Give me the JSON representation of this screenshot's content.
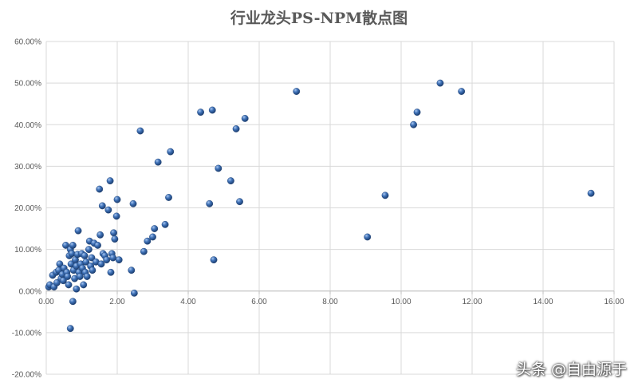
{
  "chart_data": {
    "type": "scatter",
    "title": "行业龙头PS-NPM散点图",
    "xlabel": "",
    "ylabel": "",
    "xlim": [
      0,
      16
    ],
    "ylim": [
      -0.2,
      0.6
    ],
    "x_ticks": [
      "0.00",
      "2.00",
      "4.00",
      "6.00",
      "8.00",
      "10.00",
      "12.00",
      "14.00",
      "16.00"
    ],
    "y_ticks": [
      "-20.00%",
      "-10.00%",
      "0.00%",
      "10.00%",
      "20.00%",
      "30.00%",
      "40.00%",
      "50.00%",
      "60.00%"
    ],
    "grid": true,
    "legend": "none",
    "marker_color": "#2e5e9e",
    "points": [
      [
        0.07,
        0.01
      ],
      [
        0.1,
        0.015
      ],
      [
        0.18,
        0.038
      ],
      [
        0.22,
        0.01
      ],
      [
        0.28,
        0.045
      ],
      [
        0.3,
        0.02
      ],
      [
        0.35,
        0.05
      ],
      [
        0.38,
        0.065
      ],
      [
        0.42,
        0.03
      ],
      [
        0.45,
        0.04
      ],
      [
        0.48,
        0.025
      ],
      [
        0.5,
        0.055
      ],
      [
        0.55,
        0.11
      ],
      [
        0.58,
        0.045
      ],
      [
        0.6,
        0.035
      ],
      [
        0.63,
        0.015
      ],
      [
        0.65,
        0.085
      ],
      [
        0.68,
        0.1
      ],
      [
        0.7,
        0.065
      ],
      [
        0.72,
        0.09
      ],
      [
        0.75,
        0.11
      ],
      [
        0.77,
        0.05
      ],
      [
        0.8,
        0.03
      ],
      [
        0.82,
        0.075
      ],
      [
        0.85,
        0.06
      ],
      [
        0.88,
        0.088
      ],
      [
        0.9,
        0.145
      ],
      [
        0.92,
        0.045
      ],
      [
        0.95,
        0.035
      ],
      [
        0.97,
        0.065
      ],
      [
        1.0,
        0.09
      ],
      [
        1.02,
        0.055
      ],
      [
        1.05,
        0.015
      ],
      [
        1.08,
        0.085
      ],
      [
        1.1,
        0.045
      ],
      [
        1.12,
        0.07
      ],
      [
        1.15,
        0.035
      ],
      [
        1.2,
        0.1
      ],
      [
        1.22,
        0.12
      ],
      [
        1.25,
        0.06
      ],
      [
        1.28,
        0.08
      ],
      [
        1.3,
        0.05
      ],
      [
        1.35,
        0.115
      ],
      [
        1.4,
        0.07
      ],
      [
        1.45,
        0.11
      ],
      [
        1.5,
        0.245
      ],
      [
        1.52,
        0.135
      ],
      [
        1.55,
        0.065
      ],
      [
        1.58,
        0.205
      ],
      [
        1.6,
        0.09
      ],
      [
        1.65,
        0.085
      ],
      [
        1.7,
        0.075
      ],
      [
        1.75,
        0.195
      ],
      [
        1.8,
        0.265
      ],
      [
        1.82,
        0.045
      ],
      [
        1.85,
        0.09
      ],
      [
        1.88,
        0.08
      ],
      [
        1.9,
        0.14
      ],
      [
        1.93,
        0.125
      ],
      [
        1.98,
        0.18
      ],
      [
        2.0,
        0.22
      ],
      [
        2.05,
        0.075
      ],
      [
        0.68,
        -0.09
      ],
      [
        0.75,
        -0.025
      ],
      [
        0.85,
        0.005
      ],
      [
        2.4,
        0.05
      ],
      [
        2.45,
        0.21
      ],
      [
        2.48,
        -0.005
      ],
      [
        2.65,
        0.385
      ],
      [
        2.75,
        0.095
      ],
      [
        2.85,
        0.12
      ],
      [
        3.0,
        0.13
      ],
      [
        3.05,
        0.15
      ],
      [
        3.15,
        0.31
      ],
      [
        3.35,
        0.16
      ],
      [
        3.45,
        0.225
      ],
      [
        3.5,
        0.335
      ],
      [
        4.35,
        0.43
      ],
      [
        4.6,
        0.21
      ],
      [
        4.68,
        0.435
      ],
      [
        4.72,
        0.075
      ],
      [
        4.85,
        0.295
      ],
      [
        5.2,
        0.265
      ],
      [
        5.35,
        0.39
      ],
      [
        5.45,
        0.215
      ],
      [
        5.6,
        0.415
      ],
      [
        7.05,
        0.48
      ],
      [
        9.05,
        0.13
      ],
      [
        9.55,
        0.23
      ],
      [
        10.35,
        0.4
      ],
      [
        10.45,
        0.43
      ],
      [
        11.1,
        0.5
      ],
      [
        11.7,
        0.48
      ],
      [
        15.35,
        0.235
      ]
    ]
  },
  "watermark": "头条 @自由源于"
}
